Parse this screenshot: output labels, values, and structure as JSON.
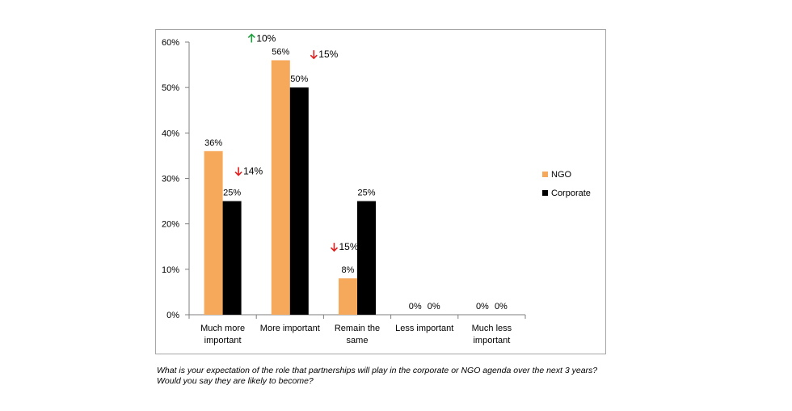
{
  "chart_data": {
    "type": "bar",
    "categories": [
      [
        "Much more",
        "important"
      ],
      [
        "More important"
      ],
      [
        "Remain the",
        "same"
      ],
      [
        "Less important"
      ],
      [
        "Much less",
        "important"
      ]
    ],
    "series": [
      {
        "name": "NGO",
        "color": "#f6a95b",
        "values": [
          36,
          56,
          8,
          0,
          0
        ],
        "labels": [
          "36%",
          "56%",
          "8%",
          "0%",
          "0%"
        ]
      },
      {
        "name": "Corporate",
        "color": "#000000",
        "values": [
          25,
          50,
          25,
          0,
          0
        ],
        "labels": [
          "25%",
          "50%",
          "25%",
          "0%",
          "0%"
        ]
      }
    ],
    "ylim": [
      0,
      60
    ],
    "yticks": [
      "0%",
      "10%",
      "20%",
      "30%",
      "40%",
      "50%",
      "60%"
    ],
    "y_unit": "percent",
    "grid": false,
    "legend_position": "right",
    "annotations": [
      {
        "text": "10%",
        "direction": "up",
        "color": "#1e9e3c",
        "category": 1,
        "anchor_series": "NGO"
      },
      {
        "text": "15%",
        "direction": "down",
        "color": "#e02020",
        "category": 1,
        "anchor_series": "Corporate"
      },
      {
        "text": "14%",
        "direction": "down",
        "color": "#e02020",
        "category": 0,
        "anchor_series": "Corporate"
      },
      {
        "text": "15%",
        "direction": "down",
        "color": "#e02020",
        "category": 2,
        "anchor_series": "NGO"
      }
    ]
  },
  "caption": {
    "line1": "What is your expectation of the role that partnerships will play in the corporate or NGO agenda over the next 3 years?",
    "line2": "Would you say they are likely to become?"
  }
}
